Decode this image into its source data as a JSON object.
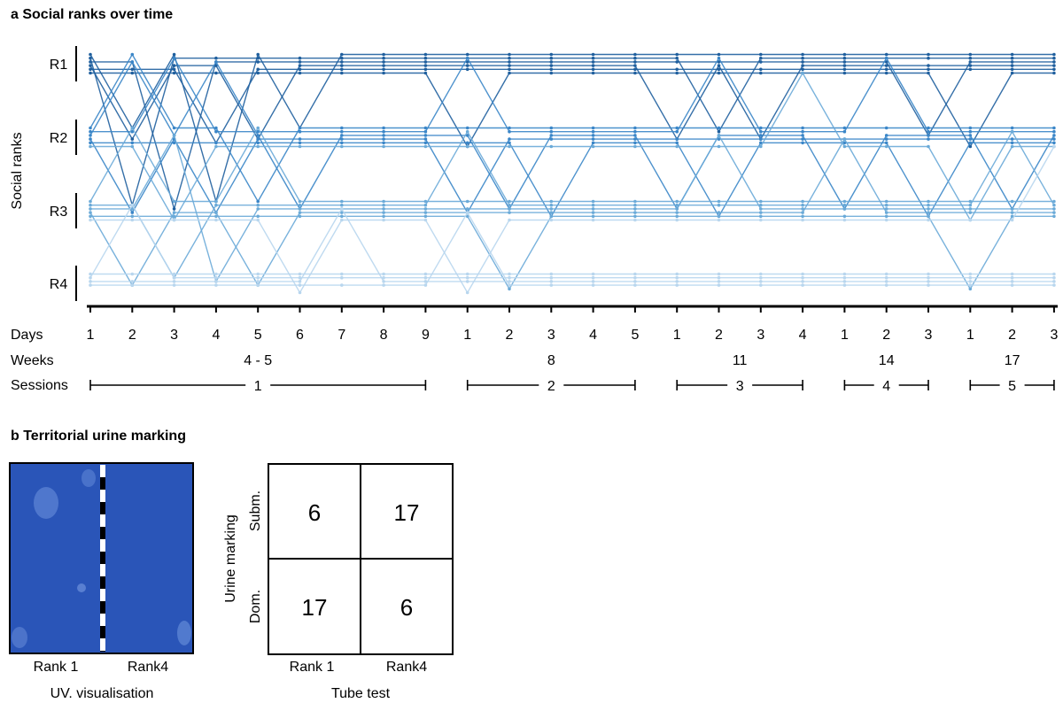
{
  "panel_a": {
    "title": "a Social ranks over time"
  },
  "panel_b": {
    "title": "b Territorial urine marking",
    "uv_image": {
      "left_label": "Rank 1",
      "right_label": "Rank4",
      "caption": "UV. visualisation",
      "background_color": "#2a55b8"
    }
  },
  "chart_data": [
    {
      "type": "line",
      "title": "Social ranks over time",
      "ylabel": "Social ranks",
      "y_ticks": [
        "R1",
        "R2",
        "R3",
        "R4"
      ],
      "x_rows": {
        "days_label": "Days",
        "weeks_label": "Weeks",
        "sessions_label": "Sessions"
      },
      "days": [
        "1",
        "2",
        "3",
        "4",
        "5",
        "6",
        "7",
        "8",
        "9",
        "1",
        "2",
        "3",
        "4",
        "5",
        "1",
        "2",
        "3",
        "4",
        "1",
        "2",
        "3",
        "1",
        "2",
        "3"
      ],
      "weeks": [
        {
          "label": "4 - 5",
          "start": 0,
          "end": 8
        },
        {
          "label": "8",
          "start": 9,
          "end": 13
        },
        {
          "label": "11",
          "start": 14,
          "end": 17
        },
        {
          "label": "14",
          "start": 18,
          "end": 20
        },
        {
          "label": "17",
          "start": 21,
          "end": 23
        }
      ],
      "sessions": [
        {
          "label": "1",
          "start": 0,
          "end": 8
        },
        {
          "label": "2",
          "start": 9,
          "end": 13
        },
        {
          "label": "3",
          "start": 14,
          "end": 17
        },
        {
          "label": "4",
          "start": 18,
          "end": 20
        },
        {
          "label": "5",
          "start": 21,
          "end": 23
        }
      ],
      "rank_colors": [
        "#1f5f9e",
        "#3a86c8",
        "#6aaad8",
        "#b8d6ee"
      ],
      "grid": false,
      "series": [
        {
          "ranks": [
            1,
            2,
            1,
            3,
            1,
            2,
            1,
            1,
            1,
            1,
            1,
            1,
            1,
            1,
            1,
            1,
            1,
            1,
            1,
            1,
            1,
            1,
            1,
            1
          ]
        },
        {
          "ranks": [
            1,
            3,
            1,
            1,
            1,
            1,
            1,
            1,
            1,
            1,
            1,
            1,
            1,
            1,
            1,
            2,
            1,
            1,
            1,
            1,
            1,
            1,
            1,
            1
          ]
        },
        {
          "ranks": [
            1,
            1,
            3,
            1,
            1,
            1,
            1,
            1,
            1,
            1,
            1,
            1,
            1,
            1,
            1,
            1,
            1,
            1,
            1,
            1,
            2,
            1,
            1,
            1
          ]
        },
        {
          "ranks": [
            1,
            2,
            1,
            1,
            2,
            1,
            1,
            1,
            1,
            1,
            1,
            1,
            1,
            1,
            2,
            1,
            2,
            1,
            1,
            1,
            1,
            1,
            1,
            1
          ]
        },
        {
          "ranks": [
            1,
            1,
            1,
            2,
            1,
            1,
            1,
            1,
            1,
            1,
            1,
            1,
            1,
            1,
            1,
            1,
            1,
            1,
            1,
            1,
            1,
            1,
            1,
            1
          ]
        },
        {
          "ranks": [
            1,
            1,
            1,
            1,
            1,
            1,
            1,
            1,
            1,
            2,
            1,
            1,
            1,
            1,
            1,
            1,
            1,
            1,
            1,
            1,
            1,
            2,
            1,
            1
          ]
        },
        {
          "ranks": [
            2,
            1,
            2,
            2,
            3,
            2,
            2,
            2,
            2,
            2,
            2,
            2,
            2,
            2,
            2,
            2,
            2,
            2,
            2,
            2,
            2,
            2,
            2,
            2
          ]
        },
        {
          "ranks": [
            2,
            2,
            1,
            2,
            2,
            2,
            2,
            2,
            2,
            1,
            2,
            2,
            2,
            2,
            2,
            1,
            2,
            2,
            2,
            1,
            2,
            2,
            2,
            2
          ]
        },
        {
          "ranks": [
            2,
            1,
            2,
            1,
            2,
            3,
            2,
            2,
            2,
            2,
            3,
            2,
            2,
            2,
            3,
            2,
            2,
            2,
            3,
            2,
            2,
            2,
            3,
            2
          ]
        },
        {
          "ranks": [
            2,
            3,
            2,
            3,
            2,
            2,
            2,
            2,
            2,
            3,
            2,
            2,
            2,
            2,
            2,
            2,
            2,
            2,
            2,
            2,
            2,
            2,
            2,
            2
          ]
        },
        {
          "ranks": [
            2,
            2,
            2,
            2,
            2,
            2,
            2,
            2,
            2,
            2,
            2,
            3,
            2,
            2,
            2,
            3,
            2,
            2,
            2,
            2,
            3,
            2,
            2,
            2
          ]
        },
        {
          "ranks": [
            2,
            2,
            3,
            2,
            2,
            2,
            2,
            2,
            2,
            2,
            2,
            2,
            2,
            2,
            2,
            2,
            2,
            1,
            2,
            2,
            2,
            3,
            2,
            2
          ]
        },
        {
          "ranks": [
            3,
            2,
            3,
            3,
            2,
            3,
            3,
            3,
            3,
            3,
            3,
            3,
            3,
            3,
            3,
            3,
            3,
            3,
            3,
            3,
            3,
            3,
            3,
            3
          ]
        },
        {
          "ranks": [
            3,
            3,
            4,
            3,
            3,
            3,
            3,
            3,
            3,
            2,
            3,
            3,
            3,
            3,
            3,
            3,
            3,
            3,
            3,
            3,
            3,
            3,
            2,
            3
          ]
        },
        {
          "ranks": [
            3,
            3,
            2,
            4,
            3,
            3,
            3,
            3,
            3,
            3,
            3,
            3,
            3,
            3,
            3,
            2,
            3,
            3,
            3,
            3,
            3,
            3,
            3,
            3
          ]
        },
        {
          "ranks": [
            3,
            4,
            3,
            3,
            4,
            3,
            3,
            3,
            3,
            3,
            3,
            3,
            3,
            3,
            3,
            3,
            3,
            3,
            2,
            3,
            3,
            3,
            3,
            3
          ]
        },
        {
          "ranks": [
            3,
            3,
            3,
            3,
            3,
            3,
            3,
            3,
            3,
            3,
            4,
            3,
            3,
            3,
            3,
            3,
            3,
            3,
            3,
            3,
            3,
            4,
            3,
            3
          ]
        },
        {
          "ranks": [
            3,
            3,
            3,
            3,
            3,
            4,
            3,
            3,
            3,
            4,
            3,
            3,
            3,
            3,
            3,
            3,
            3,
            3,
            3,
            3,
            3,
            3,
            3,
            2
          ]
        },
        {
          "ranks": [
            4,
            4,
            4,
            4,
            4,
            4,
            4,
            4,
            4,
            4,
            4,
            4,
            4,
            4,
            4,
            4,
            4,
            4,
            4,
            4,
            4,
            4,
            4,
            4
          ]
        },
        {
          "ranks": [
            4,
            3,
            4,
            4,
            4,
            4,
            4,
            4,
            4,
            4,
            4,
            4,
            4,
            4,
            4,
            4,
            4,
            4,
            4,
            4,
            4,
            4,
            4,
            4
          ]
        },
        {
          "ranks": [
            4,
            4,
            4,
            4,
            4,
            4,
            3,
            4,
            4,
            4,
            4,
            4,
            4,
            4,
            4,
            4,
            4,
            4,
            4,
            4,
            4,
            4,
            4,
            4
          ]
        },
        {
          "ranks": [
            4,
            4,
            4,
            4,
            4,
            4,
            4,
            4,
            4,
            3,
            4,
            4,
            4,
            4,
            4,
            4,
            4,
            4,
            4,
            4,
            4,
            4,
            4,
            4
          ]
        }
      ]
    },
    {
      "type": "table",
      "title": "",
      "xlabel": "Tube test",
      "ylabel": "Urine marking",
      "columns": [
        "Rank 1",
        "Rank4"
      ],
      "rows": [
        "Subm.",
        "Dom."
      ],
      "values": [
        [
          6,
          17
        ],
        [
          17,
          6
        ]
      ]
    }
  ]
}
